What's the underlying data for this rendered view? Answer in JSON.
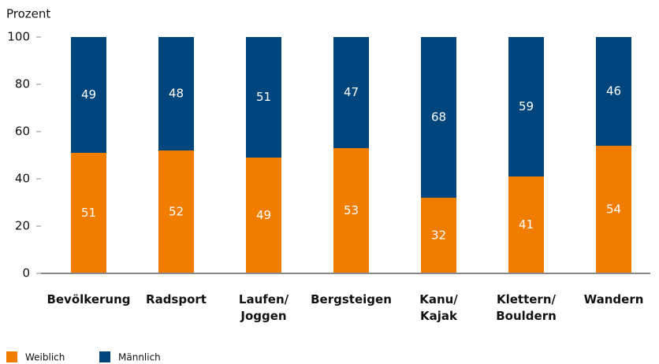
{
  "chart_data": {
    "type": "stacked_bar",
    "y_label": "Prozent",
    "categories": [
      "Bevölkerung",
      "Radsport",
      "Laufen/\nJoggen",
      "Bergsteigen",
      "Kanu/\nKajak",
      "Klettern/\nBouldern",
      "Wandern"
    ],
    "series": [
      {
        "name": "Weiblich",
        "color": "#f07d00",
        "values": [
          51,
          52,
          49,
          53,
          32,
          41,
          54
        ]
      },
      {
        "name": "Männlich",
        "color": "#00457c",
        "values": [
          49,
          48,
          51,
          47,
          68,
          59,
          46
        ]
      }
    ],
    "ylim": [
      0,
      100
    ],
    "yticks": [
      0,
      20,
      40,
      60,
      80,
      100
    ],
    "grid": false
  }
}
